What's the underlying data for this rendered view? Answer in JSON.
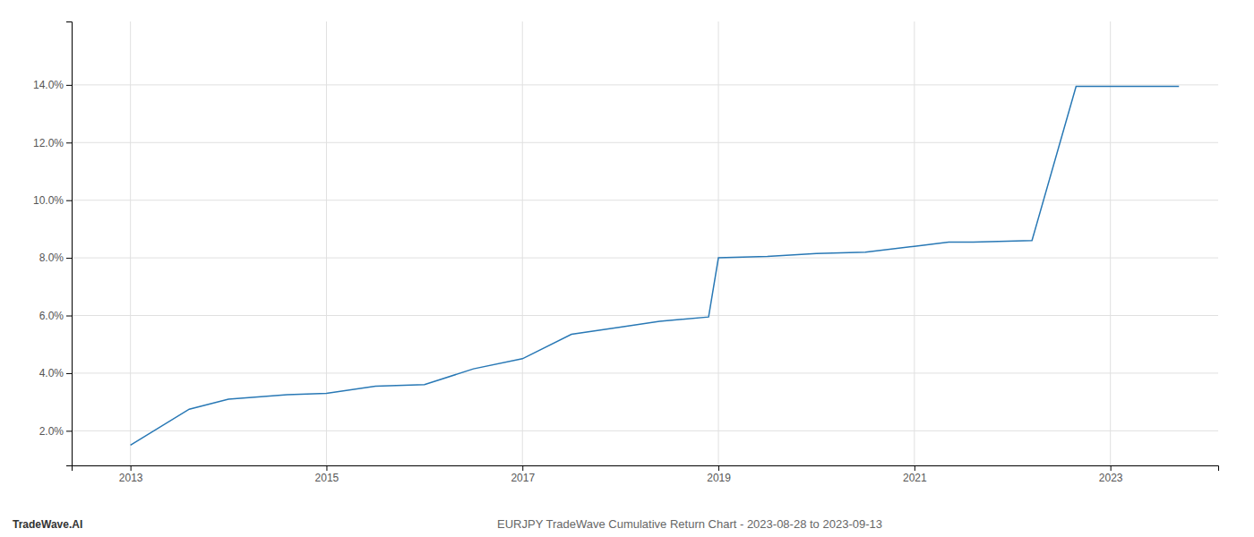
{
  "chart_data": {
    "type": "line",
    "title": "EURJPY TradeWave Cumulative Return Chart - 2023-08-28 to 2023-09-13",
    "annotations": [
      "TradeWave.AI"
    ],
    "x": [
      2013.0,
      2013.6,
      2014.0,
      2014.6,
      2015.0,
      2015.5,
      2016.0,
      2016.5,
      2017.0,
      2017.5,
      2018.0,
      2018.4,
      2018.9,
      2019.0,
      2019.5,
      2020.0,
      2020.5,
      2021.0,
      2021.35,
      2021.6,
      2022.2,
      2022.65,
      2023.0,
      2023.7
    ],
    "values": [
      1.5,
      2.75,
      3.1,
      3.25,
      3.3,
      3.55,
      3.6,
      4.15,
      4.5,
      5.35,
      5.6,
      5.8,
      5.95,
      8.0,
      8.05,
      8.15,
      8.2,
      8.4,
      8.55,
      8.55,
      8.6,
      13.95,
      13.95,
      13.95
    ],
    "color": "#2878b5",
    "xlim": [
      2012.4,
      2024.1
    ],
    "ylim": [
      0.8,
      16.2
    ],
    "xticks": [
      2013,
      2015,
      2017,
      2019,
      2021,
      2023
    ],
    "yticks": [
      {
        "value": 2.0,
        "label": "2.0%"
      },
      {
        "value": 4.0,
        "label": "4.0%"
      },
      {
        "value": 6.0,
        "label": "6.0%"
      },
      {
        "value": 8.0,
        "label": "8.0%"
      },
      {
        "value": 10.0,
        "label": "10.0%"
      },
      {
        "value": 12.0,
        "label": "12.0%"
      },
      {
        "value": 14.0,
        "label": "14.0%"
      }
    ],
    "grid": true
  }
}
